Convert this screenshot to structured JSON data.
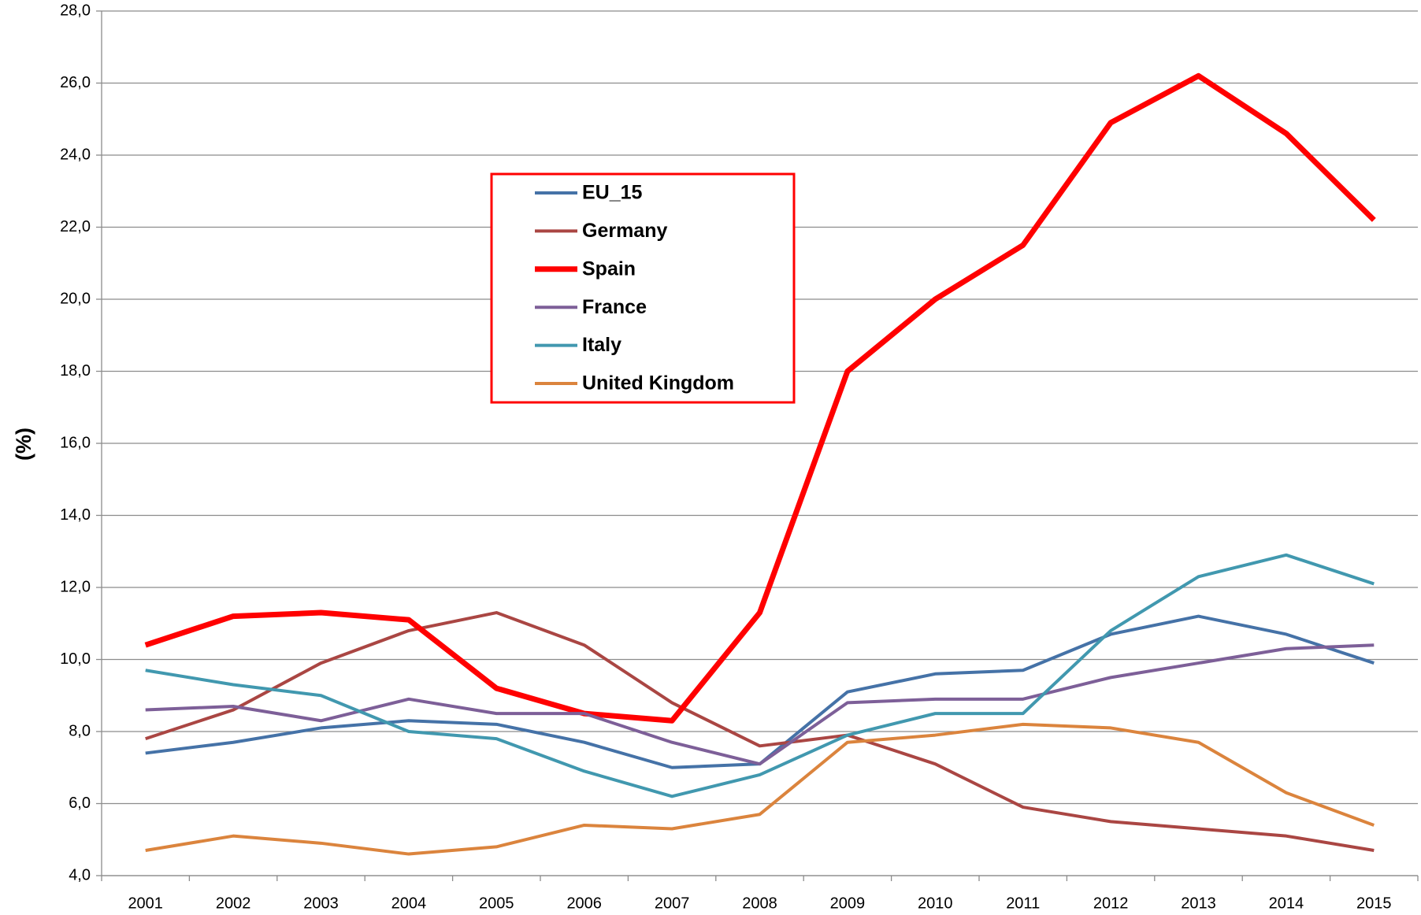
{
  "chart_data": {
    "type": "line",
    "y_label": "(%)",
    "categories": [
      "2001",
      "2002",
      "2003",
      "2004",
      "2005",
      "2006",
      "2007",
      "2008",
      "2009",
      "2010",
      "2011",
      "2012",
      "2013",
      "2014",
      "2015"
    ],
    "series": [
      {
        "name": "EU_15",
        "color": "#4572a7",
        "width": 4,
        "values": [
          7.4,
          7.7,
          8.1,
          8.3,
          8.2,
          7.7,
          7.0,
          7.1,
          9.1,
          9.6,
          9.7,
          10.7,
          11.2,
          10.7,
          9.9
        ]
      },
      {
        "name": "Germany",
        "color": "#aa4643",
        "width": 4,
        "values": [
          7.8,
          8.6,
          9.9,
          10.8,
          11.3,
          10.4,
          8.8,
          7.6,
          7.9,
          7.1,
          5.9,
          5.5,
          5.3,
          5.1,
          4.7
        ]
      },
      {
        "name": "Spain",
        "color": "#ff0000",
        "width": 7,
        "values": [
          10.4,
          11.2,
          11.3,
          11.1,
          9.2,
          8.5,
          8.3,
          11.3,
          18.0,
          20.0,
          21.5,
          24.9,
          26.2,
          24.6,
          22.2
        ]
      },
      {
        "name": "France",
        "color": "#7d5f98",
        "width": 4,
        "values": [
          8.6,
          8.7,
          8.3,
          8.9,
          8.5,
          8.5,
          7.7,
          7.1,
          8.8,
          8.9,
          8.9,
          9.5,
          9.9,
          10.3,
          10.4
        ]
      },
      {
        "name": "Italy",
        "color": "#4198af",
        "width": 4,
        "values": [
          9.7,
          9.3,
          9.0,
          8.0,
          7.8,
          6.9,
          6.2,
          6.8,
          7.9,
          8.5,
          8.5,
          10.8,
          12.3,
          12.9,
          12.1
        ]
      },
      {
        "name": "United Kingdom",
        "color": "#db843d",
        "width": 4,
        "values": [
          4.7,
          5.1,
          4.9,
          4.6,
          4.8,
          5.4,
          5.3,
          5.7,
          7.7,
          7.9,
          8.2,
          8.1,
          7.7,
          6.3,
          5.4
        ]
      }
    ],
    "ylim": [
      4,
      28
    ],
    "yticks": [
      {
        "value": 4,
        "label": "4,0"
      },
      {
        "value": 6,
        "label": "6,0"
      },
      {
        "value": 8,
        "label": "8,0"
      },
      {
        "value": 10,
        "label": "10,0"
      },
      {
        "value": 12,
        "label": "12,0"
      },
      {
        "value": 14,
        "label": "14,0"
      },
      {
        "value": 16,
        "label": "16,0"
      },
      {
        "value": 18,
        "label": "18,0"
      },
      {
        "value": 20,
        "label": "20,0"
      },
      {
        "value": 22,
        "label": "22,0"
      },
      {
        "value": 24,
        "label": "24,0"
      },
      {
        "value": 26,
        "label": "26,0"
      },
      {
        "value": 28,
        "label": "28,0"
      }
    ],
    "grid": true,
    "legend_border_color": "#ff0000"
  }
}
